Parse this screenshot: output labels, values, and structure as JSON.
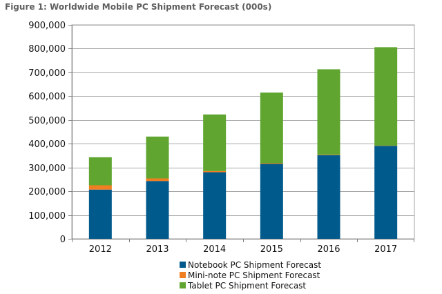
{
  "figure": {
    "title": "Figure 1: Worldwide Mobile PC Shipment Forecast (000s)"
  },
  "colors": {
    "notebook": "#005a8c",
    "mininote": "#f07f22",
    "tablet": "#5fa52f",
    "grid": "#a6a6a6",
    "axis": "#808080"
  },
  "chart_data": {
    "type": "bar",
    "stacked": true,
    "title": "Figure 1: Worldwide Mobile PC Shipment Forecast (000s)",
    "xlabel": "",
    "ylabel": "",
    "ylim": [
      0,
      900000
    ],
    "yticks": [
      0,
      100000,
      200000,
      300000,
      400000,
      500000,
      600000,
      700000,
      800000,
      900000
    ],
    "ytick_labels": [
      "0",
      "100,000",
      "200,000",
      "300,000",
      "400,000",
      "500,000",
      "600,000",
      "700,000",
      "800,000",
      "900,000"
    ],
    "grid": true,
    "legend_position": "bottom-center",
    "categories": [
      "2012",
      "2013",
      "2014",
      "2015",
      "2016",
      "2017"
    ],
    "series": [
      {
        "name": "Notebook PC Shipment Forecast",
        "color": "#005a8c",
        "values": [
          207000,
          243000,
          280000,
          315000,
          352000,
          391000
        ]
      },
      {
        "name": "Mini-note PC Shipment Forecast",
        "color": "#f07f22",
        "values": [
          18000,
          11000,
          5000,
          3000,
          2000,
          1000
        ]
      },
      {
        "name": "Tablet PC Shipment Forecast",
        "color": "#5fa52f",
        "values": [
          118000,
          176000,
          238000,
          297000,
          359000,
          414000
        ]
      }
    ]
  }
}
